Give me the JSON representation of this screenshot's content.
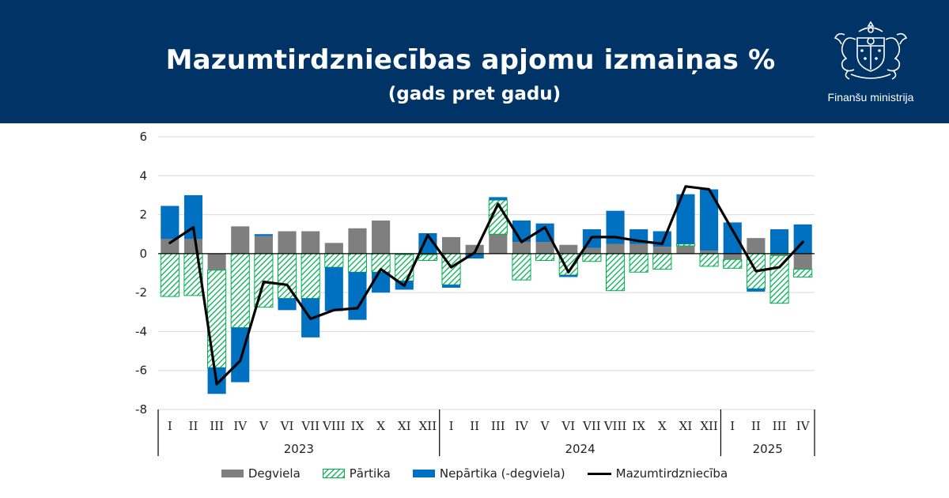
{
  "header": {
    "title": "Mazumtirdzniecības apjomu izmaiņas %",
    "subtitle": "(gads pret gadu)",
    "brand": "Finanšu ministrija",
    "background": "#003366"
  },
  "chart_data": {
    "type": "bar",
    "stacked": true,
    "title": "Mazumtirdzniecības apjomu izmaiņas %",
    "subtitle": "(gads pret gadu)",
    "categories": [
      "I",
      "II",
      "III",
      "IV",
      "V",
      "VI",
      "VII",
      "VIII",
      "IX",
      "X",
      "XI",
      "XII",
      "I",
      "II",
      "III",
      "IV",
      "V",
      "VI",
      "VII",
      "VIII",
      "IX",
      "X",
      "XI",
      "XII",
      "I",
      "II",
      "III",
      "IV"
    ],
    "groups": [
      {
        "label": "2023",
        "start": 0,
        "end": 11
      },
      {
        "label": "2024",
        "start": 12,
        "end": 23
      },
      {
        "label": "2025",
        "start": 24,
        "end": 27
      }
    ],
    "ylim": [
      -8,
      6
    ],
    "yticks": [
      6,
      4,
      2,
      0,
      -2,
      -4,
      -6,
      -8
    ],
    "grid": true,
    "legend_position": "bottom",
    "series": [
      {
        "name": "Degviela",
        "kind": "bar",
        "color": "#7f7f7f",
        "values": [
          0.75,
          0.75,
          -0.85,
          1.4,
          0.9,
          1.15,
          1.15,
          0.55,
          1.3,
          1.7,
          -0.05,
          -0.05,
          0.85,
          0.45,
          1.0,
          0.6,
          0.6,
          0.45,
          0.3,
          0.5,
          0.5,
          0.35,
          0.4,
          0.15,
          -0.3,
          0.8,
          -0.1,
          -0.8
        ]
      },
      {
        "name": "Pārtika",
        "kind": "bar",
        "color": "#00b050",
        "pattern": "hatch",
        "values": [
          -2.2,
          -2.15,
          -5.0,
          -3.8,
          -2.75,
          -2.3,
          -2.3,
          -0.7,
          -0.95,
          -0.95,
          -1.35,
          -0.3,
          -1.6,
          0.0,
          1.75,
          -1.35,
          -0.35,
          -1.1,
          -0.4,
          -1.9,
          -0.95,
          -0.8,
          0.1,
          -0.65,
          -0.45,
          -1.8,
          -2.45,
          -0.4
        ]
      },
      {
        "name": "Nepārtika (-degviela)",
        "kind": "bar",
        "color": "#0070c0",
        "values": [
          1.7,
          2.25,
          -1.35,
          -2.8,
          0.1,
          -0.6,
          -2.0,
          -2.25,
          -2.45,
          -1.05,
          -0.45,
          1.05,
          -0.15,
          -0.25,
          0.15,
          1.1,
          0.95,
          -0.1,
          0.95,
          1.7,
          0.75,
          0.8,
          2.55,
          3.15,
          1.6,
          -0.15,
          1.25,
          1.5
        ]
      },
      {
        "name": "Mazumtirdzniecība",
        "kind": "line",
        "color": "#000000",
        "values": [
          0.55,
          1.35,
          -6.7,
          -5.5,
          -1.45,
          -1.6,
          -3.35,
          -2.9,
          -2.8,
          -0.8,
          -1.65,
          0.95,
          -0.7,
          0.05,
          2.55,
          0.6,
          1.35,
          -0.95,
          0.85,
          0.85,
          0.65,
          0.5,
          3.45,
          3.3,
          1.2,
          -0.9,
          -0.7,
          0.6
        ]
      }
    ]
  }
}
